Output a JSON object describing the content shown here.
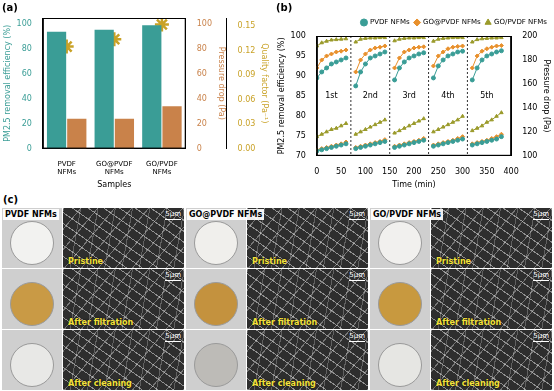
{
  "chart_data": [
    {
      "type": "bar",
      "title": "(a)",
      "x_label": "Samples",
      "y_label": "PM2.5 removal efficiency (%)",
      "y2_label": "Pressure drop (Pa)",
      "y3_label": "Quality factor (Pa⁻¹)",
      "categories": [
        "PVDF NFMs",
        "GO@PVDF NFMs",
        "GO/PVDF NFMs"
      ],
      "series": [
        {
          "color": "#3a9d96",
          "values": [
            94,
            95.5,
            99.2
          ]
        },
        {
          "color": "#c9824a",
          "values": [
            24,
            24,
            34
          ],
          "axis": "y2"
        },
        {
          "type": "scatter",
          "marker": "star",
          "color": "#c9a227",
          "values": [
            0.125,
            0.134,
            0.152
          ],
          "axis": "y3"
        }
      ],
      "ylim": [
        0,
        105
      ],
      "yticks": [
        0,
        20,
        40,
        60,
        80,
        100
      ],
      "y2lim": [
        0,
        105
      ],
      "y2ticks": [
        0,
        20,
        40,
        60,
        80,
        100
      ],
      "y3lim": [
        0,
        0.16
      ],
      "y3ticks": [
        {
          "value": 0,
          "label": "0.00"
        },
        0.03,
        0.06,
        0.09,
        0.12,
        0.15
      ],
      "grid": false
    },
    {
      "type": "line",
      "title": "(b)",
      "x_label": "Time (min)",
      "y_label": "PM2.5 removal efficiency (%)",
      "y2_label": "Pressure drop (Pa)",
      "x": [
        0,
        10,
        20,
        30,
        40,
        50,
        60,
        70,
        80,
        90,
        100,
        110,
        120,
        130,
        140,
        150,
        160,
        170,
        180,
        190,
        200,
        210,
        220,
        230,
        240,
        250,
        260,
        270,
        280,
        290,
        300,
        310,
        320,
        330,
        340,
        350,
        360,
        370,
        380
      ],
      "series": [
        {
          "name": "PVDF NFMs",
          "color": "#3a9d96",
          "marker": "circle",
          "values": [
            89.5,
            91,
            92,
            93,
            93.5,
            94,
            94.5,
            null,
            87.5,
            91,
            93,
            94.5,
            95,
            95.5,
            96,
            null,
            89,
            92,
            93.5,
            94.5,
            95,
            95.5,
            95.8,
            null,
            89.5,
            92.5,
            94,
            95,
            95.5,
            96,
            96.2,
            null,
            89,
            92,
            94,
            95,
            95.5,
            96,
            96.3
          ]
        },
        {
          "name": "GO@PVDF NFMs",
          "color": "#e8902c",
          "marker": "diamond",
          "values": [
            92,
            94,
            95,
            95.5,
            96,
            96.2,
            96.5,
            null,
            91,
            94,
            95.5,
            96.5,
            97,
            97.2,
            97.5,
            null,
            92,
            94.5,
            96,
            96.5,
            97,
            97.2,
            97.3,
            null,
            92.5,
            95,
            96,
            96.8,
            97.2,
            97.4,
            97.5,
            null,
            92,
            95,
            96.2,
            96.8,
            97.2,
            97.5,
            97.6
          ]
        },
        {
          "name": "GO/PVDF NFMs",
          "color": "#9a9a2a",
          "marker": "triangle",
          "values": [
            97.5,
            98.3,
            98.7,
            99,
            99.1,
            99.2,
            99.3,
            null,
            98.5,
            99.2,
            99.4,
            99.5,
            99.5,
            99.6,
            99.6,
            null,
            98.8,
            99.2,
            99.4,
            99.5,
            99.5,
            99.6,
            99.6,
            null,
            98.7,
            99.2,
            99.4,
            99.5,
            99.6,
            99.6,
            99.6,
            null,
            98.5,
            99.1,
            99.3,
            99.4,
            99.5,
            99.5,
            99.6
          ]
        },
        {
          "name": "PVDF NFMs",
          "color": "#3a9d96",
          "marker": "circle",
          "axis": "y2",
          "values": [
            104,
            105,
            106,
            107,
            108,
            109,
            110,
            null,
            106,
            107,
            108,
            109,
            110,
            111,
            112,
            null,
            107,
            108,
            109,
            110,
            111,
            112,
            113,
            null,
            108,
            109,
            110,
            111,
            112,
            113,
            114,
            null,
            109,
            110,
            111,
            112,
            113,
            114,
            116
          ]
        },
        {
          "name": "GO@PVDF NFMs",
          "color": "#e8902c",
          "marker": "diamond",
          "axis": "y2",
          "values": [
            105,
            106,
            107,
            108,
            109,
            110,
            111.5,
            null,
            107,
            108,
            109,
            110,
            111,
            112,
            113.5,
            null,
            108,
            109,
            110,
            111,
            112,
            113,
            114.5,
            null,
            109,
            110,
            111,
            112,
            113,
            114.5,
            116,
            null,
            110,
            111,
            112,
            113,
            114.5,
            116,
            118
          ]
        },
        {
          "name": "GO/PVDF NFMs",
          "color": "#9a9a2a",
          "marker": "triangle",
          "axis": "y2",
          "values": [
            116,
            118,
            120,
            122,
            123,
            125,
            127,
            null,
            118,
            120,
            122,
            124,
            126,
            128,
            130,
            null,
            119,
            121,
            123,
            125,
            127,
            129,
            131,
            null,
            120,
            122,
            124,
            126,
            128,
            130,
            133,
            null,
            121,
            123,
            125,
            128,
            130,
            133,
            136
          ]
        }
      ],
      "xlim": [
        0,
        400
      ],
      "xticks": [
        0,
        50,
        100,
        150,
        200,
        250,
        300,
        350,
        400
      ],
      "ylim": [
        70,
        100
      ],
      "yticks": [
        70,
        75,
        80,
        85,
        90,
        95,
        100
      ],
      "y2lim": [
        100,
        200
      ],
      "y2ticks": [
        100,
        120,
        140,
        160,
        180,
        200
      ],
      "cycle_boundaries": [
        70,
        150,
        230,
        310
      ],
      "annotations": [
        {
          "text": "1st",
          "x": 30
        },
        {
          "text": "2nd",
          "x": 110
        },
        {
          "text": "3rd",
          "x": 190
        },
        {
          "text": "4th",
          "x": 270
        },
        {
          "text": "5th",
          "x": 350
        }
      ],
      "legend": "top",
      "grid": false
    }
  ],
  "image_panel": {
    "title": "(c)",
    "columns": [
      "PVDF NFMs",
      "GO@PVDF NFMs",
      "GO/PVDF NFMs"
    ],
    "rows": [
      "Pristine",
      "After filtration",
      "After cleaning"
    ],
    "scale_bar": "5μm"
  }
}
